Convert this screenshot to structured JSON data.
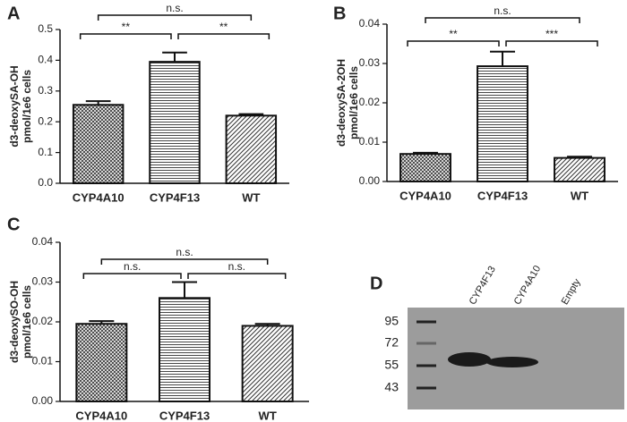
{
  "chart_data": [
    {
      "type": "bar",
      "panel_label": "A",
      "ylabel": [
        "d3-deoxySA-OH",
        "pmol/1e6 cells"
      ],
      "categories": [
        "CYP4A10",
        "CYP4F13",
        "WT"
      ],
      "values": [
        0.255,
        0.395,
        0.22
      ],
      "errors": [
        0.012,
        0.03,
        0.005
      ],
      "ylim": [
        0,
        0.5
      ],
      "yticks": [
        {
          "value": 0,
          "label": "0.0"
        },
        0.1,
        0.2,
        0.3,
        0.4,
        0.5
      ],
      "color": "#111111",
      "brackets": [
        {
          "label": "**",
          "between": [
            "CYP4A10",
            "CYP4F13"
          ]
        },
        {
          "label": "**",
          "between": [
            "CYP4F13",
            "WT"
          ]
        },
        {
          "label": "n.s.",
          "between": [
            "CYP4A10",
            "WT"
          ]
        }
      ]
    },
    {
      "type": "bar",
      "panel_label": "B",
      "ylabel": [
        "d3-deoxySA-2OH",
        "pmol/1e6 cells"
      ],
      "categories": [
        "CYP4A10",
        "CYP4F13",
        "WT"
      ],
      "values": [
        0.007,
        0.0293,
        0.006
      ],
      "errors": [
        0.0003,
        0.0037,
        0.0003
      ],
      "ylim": [
        0,
        0.04
      ],
      "yticks": [
        {
          "value": 0,
          "label": "0.00"
        },
        {
          "value": 0.01,
          "label": "0.01"
        },
        {
          "value": 0.02,
          "label": "0.02"
        },
        {
          "value": 0.03,
          "label": "0.03"
        },
        {
          "value": 0.04,
          "label": "0.04"
        }
      ],
      "color": "#111111",
      "brackets": [
        {
          "label": "**",
          "between": [
            "CYP4A10",
            "CYP4F13"
          ]
        },
        {
          "label": "***",
          "between": [
            "CYP4F13",
            "WT"
          ]
        },
        {
          "label": "n.s.",
          "between": [
            "CYP4A10",
            "WT"
          ]
        }
      ]
    },
    {
      "type": "bar",
      "panel_label": "C",
      "ylabel": [
        "d3-deoxySO-OH",
        "pmol/1e6 cells"
      ],
      "categories": [
        "CYP4A10",
        "CYP4F13",
        "WT"
      ],
      "values": [
        0.0195,
        0.026,
        0.019
      ],
      "errors": [
        0.0007,
        0.004,
        0.0005
      ],
      "ylim": [
        0,
        0.04
      ],
      "yticks": [
        {
          "value": 0,
          "label": "0.00"
        },
        {
          "value": 0.01,
          "label": "0.01"
        },
        {
          "value": 0.02,
          "label": "0.02"
        },
        {
          "value": 0.03,
          "label": "0.03"
        },
        {
          "value": 0.04,
          "label": "0.04"
        }
      ],
      "color": "#111111",
      "brackets": [
        {
          "label": "n.s.",
          "between": [
            "CYP4A10",
            "CYP4F13"
          ]
        },
        {
          "label": "n.s.",
          "between": [
            "CYP4F13",
            "WT"
          ]
        },
        {
          "label": "n.s.",
          "between": [
            "CYP4A10",
            "WT"
          ]
        }
      ]
    }
  ],
  "blot": {
    "panel_label": "D",
    "lanes": [
      "CYP4F13",
      "CYP4A10",
      "Empty"
    ],
    "markers": [
      95,
      72,
      55,
      43
    ]
  }
}
